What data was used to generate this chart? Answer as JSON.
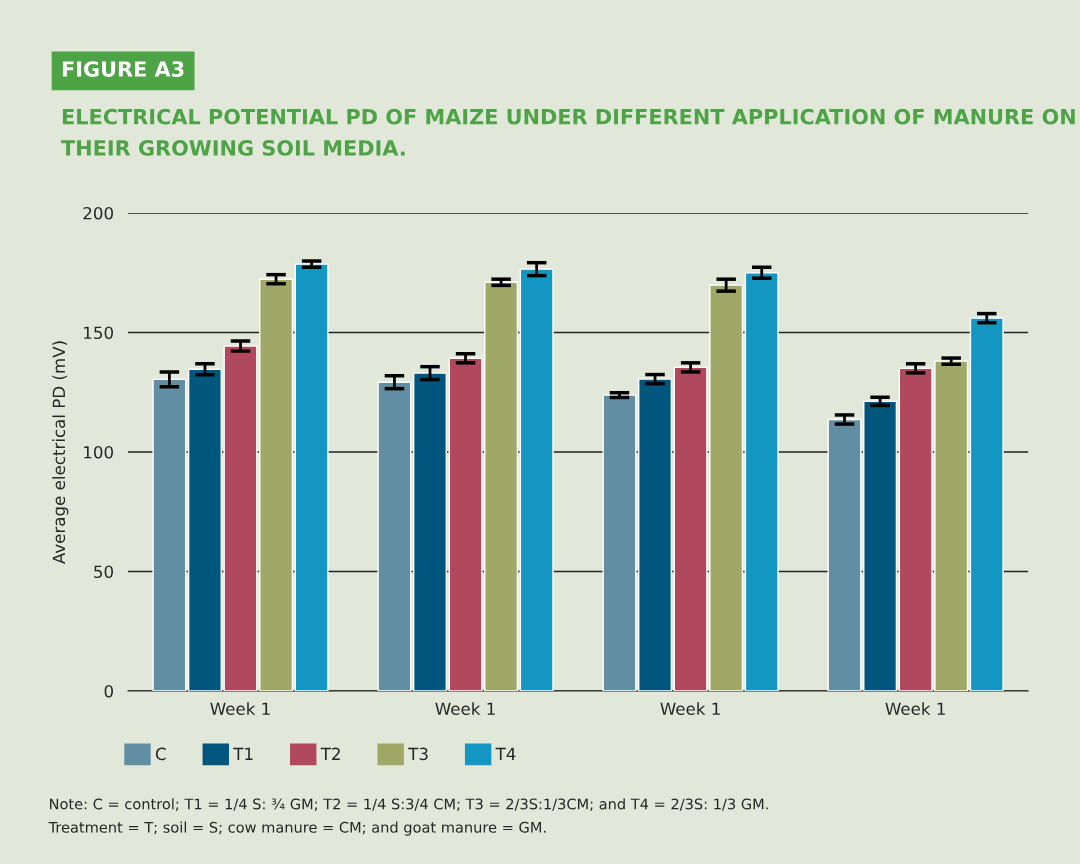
{
  "chart_data": {
    "type": "bar",
    "title": "FIGURE A3",
    "subtitle": "ELECTRICAL POTENTIAL PD OF MAIZE UNDER DIFFERENT APPLICATION OF MANURE ON THEIR GROWING SOIL MEDIA.",
    "ylabel": "Average electrical PD (mV)",
    "categories": [
      "Week 1",
      "Week 1",
      "Week 1",
      "Week 1"
    ],
    "series": [
      {
        "name": "C",
        "color": "#628ea3",
        "values": [
          130.4,
          129.2,
          123.8,
          113.6
        ],
        "errors": [
          3.1,
          2.7,
          1,
          1.9
        ]
      },
      {
        "name": "T1",
        "color": "#00567c",
        "values": [
          134.6,
          133.0,
          130.5,
          121.2
        ],
        "errors": [
          2.3,
          2.7,
          1.9,
          1.7
        ]
      },
      {
        "name": "T2",
        "color": "#b0495d",
        "values": [
          144.3,
          139.2,
          135.4,
          135.0
        ],
        "errors": [
          2.1,
          1.9,
          1.9,
          1.9
        ]
      },
      {
        "name": "T3",
        "color": "#a0a867",
        "values": [
          172.3,
          171.0,
          169.8,
          138.0
        ],
        "errors": [
          1.9,
          1.3,
          2.5,
          1.3
        ]
      },
      {
        "name": "T4",
        "color": "#1496c3",
        "values": [
          178.6,
          176.5,
          175.0,
          156.0
        ],
        "errors": [
          1.3,
          2.7,
          2.3,
          1.9
        ]
      }
    ],
    "ylim": [
      0,
      200
    ],
    "yticks": [
      0,
      50,
      100,
      150,
      200
    ],
    "grid": "y",
    "legend": "bottom left",
    "annotations": [
      "Note: C = control; T1 = 1/4 S: ¾ GM; T2 = 1/4 S:3/4 CM; T3 = 2/3S:1/3CM; and T4 = 2/3S: 1/3 GM.",
      "Treatment = T; soil = S; cow manure = CM; and goat manure = GM."
    ]
  }
}
